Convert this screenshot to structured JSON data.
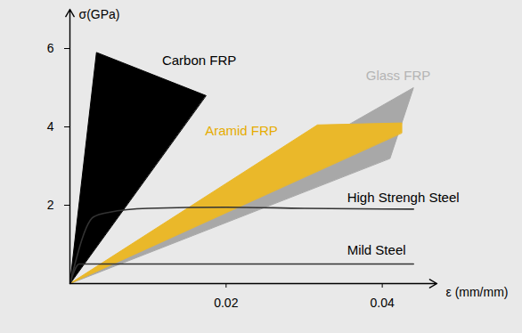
{
  "chart_data": {
    "type": "line",
    "x_label": "ε (mm/mm)",
    "y_label": "σ(GPa)",
    "xlim": [
      0,
      0.047
    ],
    "ylim": [
      0,
      7
    ],
    "xticks": [
      0.02,
      0.04
    ],
    "yticks": [
      2,
      4,
      6
    ],
    "grid": false,
    "series": [
      {
        "name": "Glass FRP",
        "type": "polygon",
        "color": "#a8a8a8",
        "x": [
          0,
          0.044,
          0.041
        ],
        "values": [
          0,
          5.0,
          3.2
        ]
      },
      {
        "name": "Aramid FRP",
        "type": "polygon",
        "color": "#eab82a",
        "x": [
          0,
          0.0317,
          0.0425,
          0.0425
        ],
        "values": [
          0,
          4.05,
          4.1,
          3.85
        ]
      },
      {
        "name": "Carbon FRP",
        "type": "polygon",
        "color": "#000000",
        "x": [
          0,
          0.0034,
          0.0174
        ],
        "values": [
          0,
          5.9,
          4.8
        ]
      },
      {
        "name": "High Strengh Steel",
        "type": "line",
        "color": "#333333",
        "x": [
          0,
          0.003,
          0.005,
          0.01,
          0.02,
          0.03,
          0.044
        ],
        "values": [
          0,
          1.7,
          1.82,
          1.92,
          1.95,
          1.92,
          1.9
        ]
      },
      {
        "name": "Mild Steel",
        "type": "line",
        "color": "#333333",
        "x": [
          0,
          0.0012,
          0.003,
          0.02,
          0.044
        ],
        "values": [
          0,
          0.5,
          0.5,
          0.5,
          0.5
        ]
      }
    ],
    "annotations": [
      {
        "text": "Carbon FRP",
        "x": 0.0118,
        "y": 5.7,
        "color": "#000000"
      },
      {
        "text": "Glass FRP",
        "x": 0.0379,
        "y": 5.3,
        "color": "#b4b4b4"
      },
      {
        "text": "Aramid FRP",
        "x": 0.0173,
        "y": 3.9,
        "color": "#e6ac00"
      },
      {
        "text": "High Strengh Steel",
        "x": 0.0355,
        "y": 2.2,
        "color": "#000000"
      },
      {
        "text": "Mild Steel",
        "x": 0.0355,
        "y": 0.85,
        "color": "#000000"
      }
    ]
  }
}
